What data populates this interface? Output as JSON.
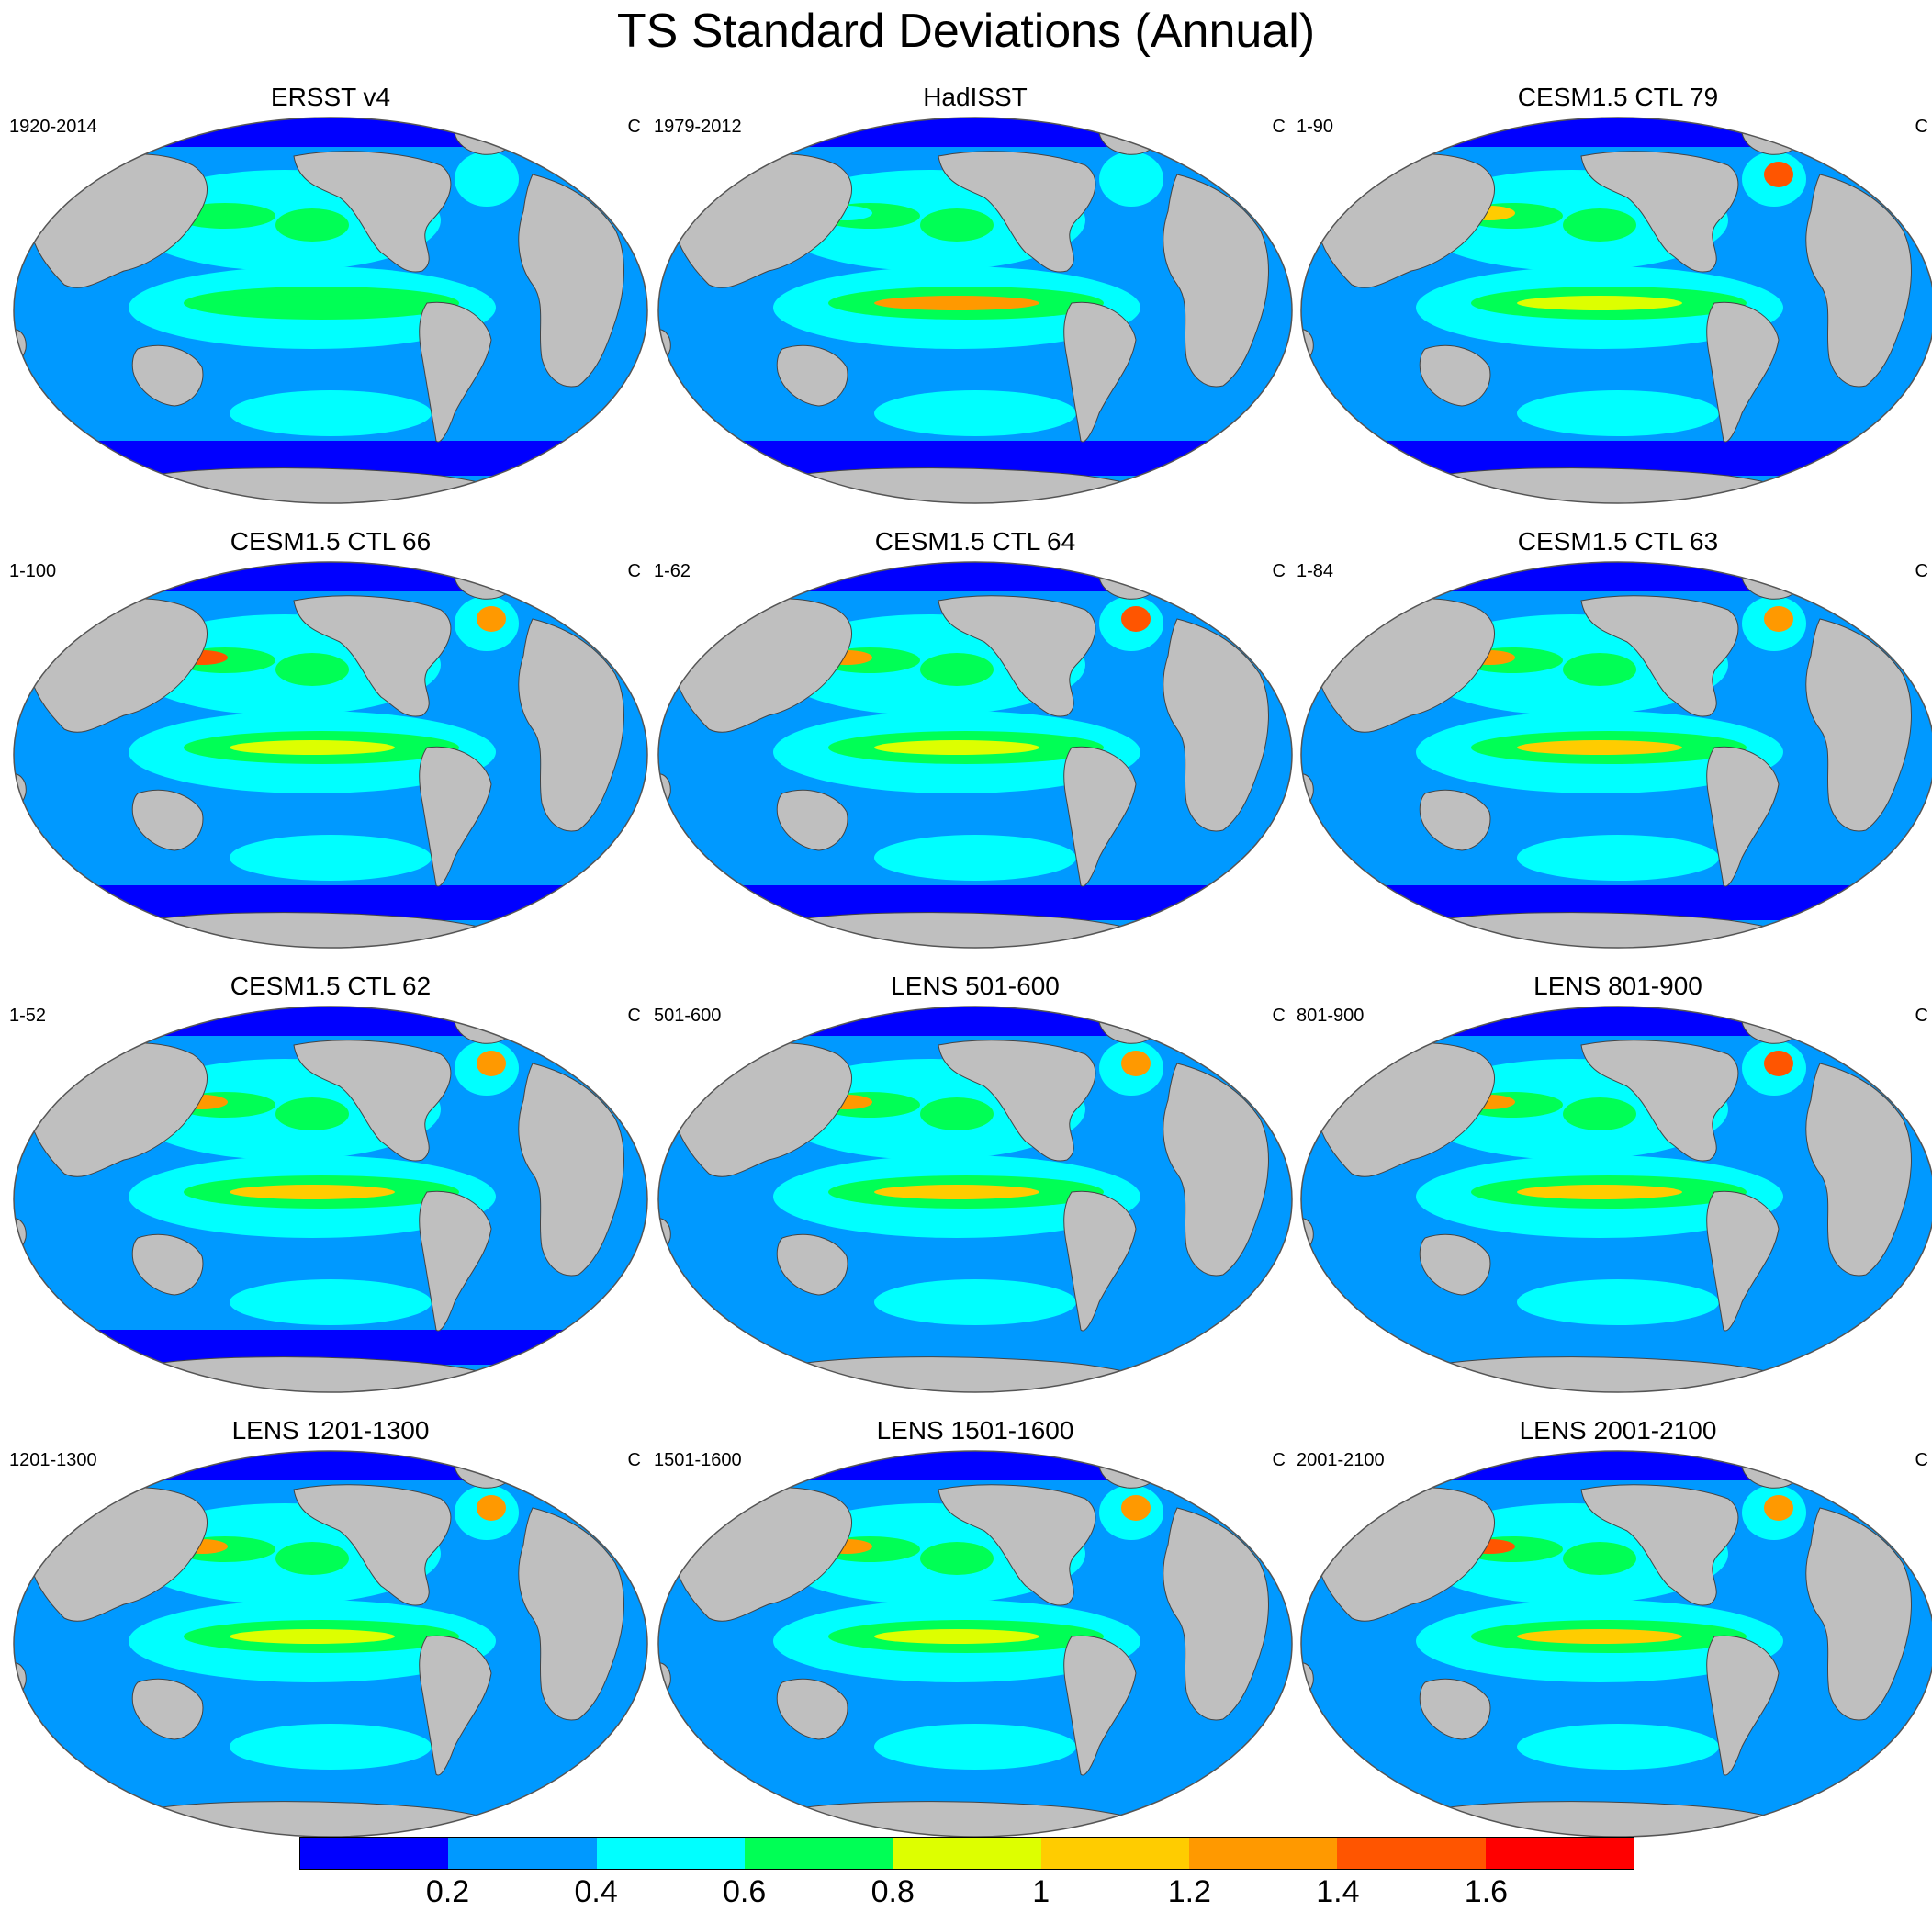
{
  "title": "TS Standard Deviations (Annual)",
  "units_label": "C",
  "panels": [
    {
      "title": "ERSST v4",
      "period": "1920-2014",
      "enso": 0.62,
      "kuroshio": 0.6,
      "atlantic": 0.55,
      "southern": 0.1
    },
    {
      "title": "HadISST",
      "period": "1979-2012",
      "enso": 1.25,
      "kuroshio": 0.55,
      "atlantic": 0.5,
      "southern": 0.1
    },
    {
      "title": "CESM1.5 CTL 79",
      "period": "1-90",
      "enso": 0.85,
      "kuroshio": 1.1,
      "atlantic": 1.45,
      "southern": 0.15
    },
    {
      "title": "CESM1.5 CTL 66",
      "period": "1-100",
      "enso": 0.85,
      "kuroshio": 1.45,
      "atlantic": 1.3,
      "southern": 0.15
    },
    {
      "title": "CESM1.5 CTL 64",
      "period": "1-62",
      "enso": 0.95,
      "kuroshio": 1.25,
      "atlantic": 1.5,
      "southern": 0.15
    },
    {
      "title": "CESM1.5 CTL 63",
      "period": "1-84",
      "enso": 1.05,
      "kuroshio": 1.35,
      "atlantic": 1.3,
      "southern": 0.15
    },
    {
      "title": "CESM1.5 CTL 62",
      "period": "1-52",
      "enso": 1.15,
      "kuroshio": 1.3,
      "atlantic": 1.25,
      "southern": 0.15
    },
    {
      "title": "LENS 501-600",
      "period": "501-600",
      "enso": 1.05,
      "kuroshio": 1.35,
      "atlantic": 1.2,
      "southern": 0.3
    },
    {
      "title": "LENS 801-900",
      "period": "801-900",
      "enso": 1.0,
      "kuroshio": 1.3,
      "atlantic": 1.45,
      "southern": 0.3
    },
    {
      "title": "LENS 1201-1300",
      "period": "1201-1300",
      "enso": 0.95,
      "kuroshio": 1.35,
      "atlantic": 1.3,
      "southern": 0.3
    },
    {
      "title": "LENS 1501-1600",
      "period": "1501-1600",
      "enso": 0.95,
      "kuroshio": 1.3,
      "atlantic": 1.3,
      "southern": 0.3
    },
    {
      "title": "LENS 2001-2100",
      "period": "2001-2100",
      "enso": 1.0,
      "kuroshio": 1.4,
      "atlantic": 1.35,
      "southern": 0.3
    }
  ],
  "colorbar": {
    "colors": [
      "#0000ff",
      "#0099ff",
      "#00ffff",
      "#00ff55",
      "#ddff00",
      "#ffcc00",
      "#ff9900",
      "#ff5500",
      "#ff0000"
    ],
    "levels": [
      "0.2",
      "0.4",
      "0.6",
      "0.8",
      "1",
      "1.2",
      "1.4",
      "1.6"
    ]
  },
  "land_color": "#bfbfbf"
}
